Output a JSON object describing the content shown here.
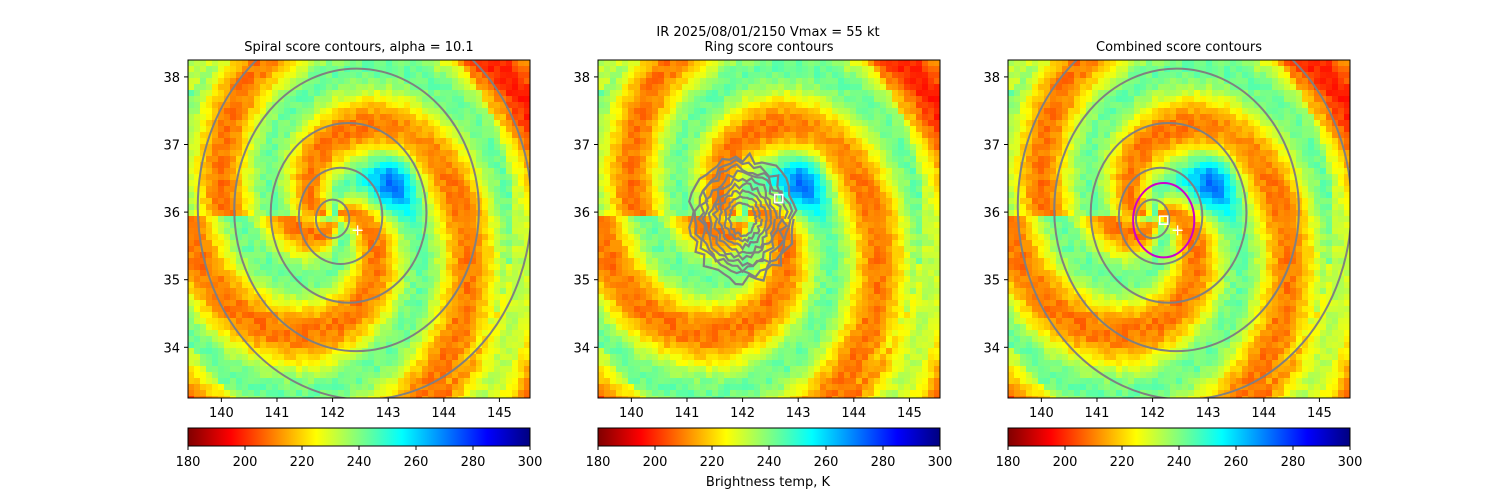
{
  "suptitle": "IR  2025/08/01/2150    Vmax = 55 kt",
  "colorbar": {
    "label": "Brightness temp, K",
    "ticks": [
      180,
      200,
      220,
      240,
      260,
      280,
      300
    ],
    "vmin": 180,
    "vmax": 300,
    "cmap": "jet_r",
    "colors": [
      "#800000",
      "#ff0000",
      "#ff8000",
      "#ffff00",
      "#80ff80",
      "#00ffff",
      "#0080ff",
      "#0000ff",
      "#000080"
    ]
  },
  "chart_data": [
    {
      "type": "heatmap",
      "title": "Spiral score contours, alpha = 10.1",
      "xlim": [
        139.4,
        145.55
      ],
      "ylim": [
        33.25,
        38.25
      ],
      "xticks": [
        140,
        141,
        142,
        143,
        144,
        145
      ],
      "yticks": [
        34,
        35,
        36,
        37,
        38
      ],
      "contour_color": "#808080",
      "spiral_alpha": 10.1,
      "contour_center": [
        142.0,
        35.9
      ],
      "contour_radii": [
        0.3,
        0.75,
        1.4,
        2.2,
        3.0
      ],
      "first_guess_plus": [
        142.45,
        35.73
      ],
      "cold_cloud_maximum": [
        143.1,
        36.45
      ]
    },
    {
      "type": "heatmap",
      "title": "Ring score contours",
      "xlim": [
        139.4,
        145.55
      ],
      "ylim": [
        33.25,
        38.25
      ],
      "xticks": [
        140,
        141,
        142,
        143,
        144,
        145
      ],
      "yticks": [
        34,
        35,
        36,
        37,
        38
      ],
      "contour_color": "#808080",
      "ring_region_center": [
        142.0,
        35.9
      ],
      "ring_region_radius": 0.95,
      "ring_max_square": [
        142.65,
        36.2
      ],
      "cold_cloud_maximum": [
        143.1,
        36.45
      ]
    },
    {
      "type": "heatmap",
      "title": "Combined score contours",
      "xlim": [
        139.4,
        145.55
      ],
      "ylim": [
        33.25,
        38.25
      ],
      "xticks": [
        140,
        141,
        142,
        143,
        144,
        145
      ],
      "yticks": [
        34,
        35,
        36,
        37,
        38
      ],
      "contour_color": "#808080",
      "contour_center": [
        142.0,
        35.9
      ],
      "contour_radii": [
        0.3,
        0.75,
        1.4,
        2.2,
        3.0
      ],
      "combined_circle": {
        "center": [
          142.2,
          35.88
        ],
        "radius": 0.55,
        "color": "#cc00cc"
      },
      "combined_max_square": [
        142.2,
        35.88
      ],
      "first_guess_plus": [
        142.45,
        35.73
      ],
      "cold_cloud_maximum": [
        143.1,
        36.45
      ]
    }
  ]
}
